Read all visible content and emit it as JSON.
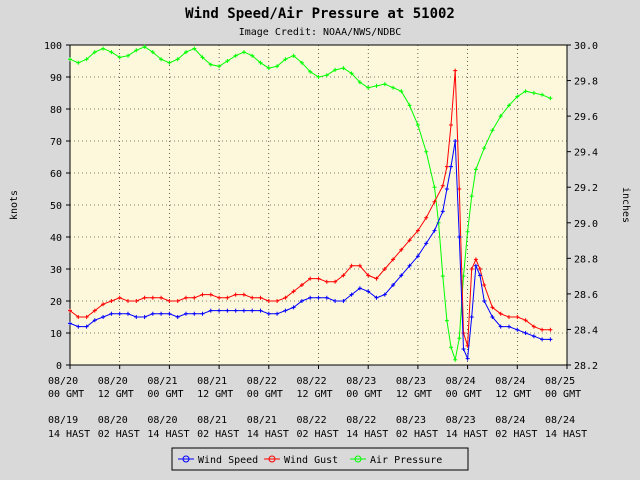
{
  "chart_data": {
    "type": "line",
    "title": "Wind Speed/Air Pressure at 51002",
    "subtitle": "Image Credit: NOAA/NWS/NDBC",
    "ylabel": "knots",
    "y2label": "inches",
    "ylim": [
      0,
      100
    ],
    "y2lim": [
      28.2,
      30.0
    ],
    "yticks": [
      "0",
      "10",
      "20",
      "30",
      "40",
      "50",
      "60",
      "70",
      "80",
      "90",
      "100"
    ],
    "y2ticks": [
      "28.2",
      "28.4",
      "28.6",
      "28.8",
      "29.0",
      "29.2",
      "29.4",
      "29.6",
      "29.8",
      "30.0"
    ],
    "xlim_hours": [
      0,
      120
    ],
    "x_ticks_gmt": [
      {
        "date": "08/20",
        "time": "00 GMT"
      },
      {
        "date": "08/20",
        "time": "12 GMT"
      },
      {
        "date": "08/21",
        "time": "00 GMT"
      },
      {
        "date": "08/21",
        "time": "12 GMT"
      },
      {
        "date": "08/22",
        "time": "00 GMT"
      },
      {
        "date": "08/22",
        "time": "12 GMT"
      },
      {
        "date": "08/23",
        "time": "00 GMT"
      },
      {
        "date": "08/23",
        "time": "12 GMT"
      },
      {
        "date": "08/24",
        "time": "00 GMT"
      },
      {
        "date": "08/24",
        "time": "12 GMT"
      },
      {
        "date": "08/25",
        "time": "00 GMT"
      }
    ],
    "x_ticks_hast": [
      {
        "date": "08/19",
        "time": "14 HAST"
      },
      {
        "date": "08/20",
        "time": "02 HAST"
      },
      {
        "date": "08/20",
        "time": "14 HAST"
      },
      {
        "date": "08/21",
        "time": "02 HAST"
      },
      {
        "date": "08/21",
        "time": "14 HAST"
      },
      {
        "date": "08/22",
        "time": "02 HAST"
      },
      {
        "date": "08/22",
        "time": "14 HAST"
      },
      {
        "date": "08/23",
        "time": "02 HAST"
      },
      {
        "date": "08/23",
        "time": "14 HAST"
      },
      {
        "date": "08/24",
        "time": "02 HAST"
      },
      {
        "date": "08/24",
        "time": "14 HAST"
      }
    ],
    "grid": true,
    "legend_position": "bottom",
    "series": [
      {
        "name": "Wind Speed",
        "axis": "left",
        "color": "#0000ff",
        "points": [
          [
            0,
            13
          ],
          [
            2,
            12
          ],
          [
            4,
            12
          ],
          [
            6,
            14
          ],
          [
            8,
            15
          ],
          [
            10,
            16
          ],
          [
            12,
            16
          ],
          [
            14,
            16
          ],
          [
            16,
            15
          ],
          [
            18,
            15
          ],
          [
            20,
            16
          ],
          [
            22,
            16
          ],
          [
            24,
            16
          ],
          [
            26,
            15
          ],
          [
            28,
            16
          ],
          [
            30,
            16
          ],
          [
            32,
            16
          ],
          [
            34,
            17
          ],
          [
            36,
            17
          ],
          [
            38,
            17
          ],
          [
            40,
            17
          ],
          [
            42,
            17
          ],
          [
            44,
            17
          ],
          [
            46,
            17
          ],
          [
            48,
            16
          ],
          [
            50,
            16
          ],
          [
            52,
            17
          ],
          [
            54,
            18
          ],
          [
            56,
            20
          ],
          [
            58,
            21
          ],
          [
            60,
            21
          ],
          [
            62,
            21
          ],
          [
            64,
            20
          ],
          [
            66,
            20
          ],
          [
            68,
            22
          ],
          [
            70,
            24
          ],
          [
            72,
            23
          ],
          [
            74,
            21
          ],
          [
            76,
            22
          ],
          [
            78,
            25
          ],
          [
            80,
            28
          ],
          [
            82,
            31
          ],
          [
            84,
            34
          ],
          [
            86,
            38
          ],
          [
            88,
            42
          ],
          [
            90,
            48
          ],
          [
            91,
            55
          ],
          [
            92,
            62
          ],
          [
            93,
            70
          ],
          [
            94,
            40
          ],
          [
            95,
            5
          ],
          [
            96,
            2
          ],
          [
            97,
            15
          ],
          [
            98,
            31
          ],
          [
            99,
            28
          ],
          [
            100,
            20
          ],
          [
            102,
            15
          ],
          [
            104,
            12
          ],
          [
            106,
            12
          ],
          [
            108,
            11
          ],
          [
            110,
            10
          ],
          [
            112,
            9
          ],
          [
            114,
            8
          ],
          [
            116,
            8
          ]
        ]
      },
      {
        "name": "Wind Gust",
        "axis": "left",
        "color": "#ff0000",
        "points": [
          [
            0,
            17
          ],
          [
            2,
            15
          ],
          [
            4,
            15
          ],
          [
            6,
            17
          ],
          [
            8,
            19
          ],
          [
            10,
            20
          ],
          [
            12,
            21
          ],
          [
            14,
            20
          ],
          [
            16,
            20
          ],
          [
            18,
            21
          ],
          [
            20,
            21
          ],
          [
            22,
            21
          ],
          [
            24,
            20
          ],
          [
            26,
            20
          ],
          [
            28,
            21
          ],
          [
            30,
            21
          ],
          [
            32,
            22
          ],
          [
            34,
            22
          ],
          [
            36,
            21
          ],
          [
            38,
            21
          ],
          [
            40,
            22
          ],
          [
            42,
            22
          ],
          [
            44,
            21
          ],
          [
            46,
            21
          ],
          [
            48,
            20
          ],
          [
            50,
            20
          ],
          [
            52,
            21
          ],
          [
            54,
            23
          ],
          [
            56,
            25
          ],
          [
            58,
            27
          ],
          [
            60,
            27
          ],
          [
            62,
            26
          ],
          [
            64,
            26
          ],
          [
            66,
            28
          ],
          [
            68,
            31
          ],
          [
            70,
            31
          ],
          [
            72,
            28
          ],
          [
            74,
            27
          ],
          [
            76,
            30
          ],
          [
            78,
            33
          ],
          [
            80,
            36
          ],
          [
            82,
            39
          ],
          [
            84,
            42
          ],
          [
            86,
            46
          ],
          [
            88,
            51
          ],
          [
            90,
            56
          ],
          [
            91,
            62
          ],
          [
            92,
            75
          ],
          [
            93,
            92
          ],
          [
            94,
            55
          ],
          [
            95,
            10
          ],
          [
            96,
            6
          ],
          [
            97,
            30
          ],
          [
            98,
            33
          ],
          [
            99,
            30
          ],
          [
            100,
            25
          ],
          [
            102,
            18
          ],
          [
            104,
            16
          ],
          [
            106,
            15
          ],
          [
            108,
            15
          ],
          [
            110,
            14
          ],
          [
            112,
            12
          ],
          [
            114,
            11
          ],
          [
            116,
            11
          ]
        ]
      },
      {
        "name": "Air Pressure",
        "axis": "right",
        "color": "#00ff00",
        "points": [
          [
            0,
            29.92
          ],
          [
            2,
            29.9
          ],
          [
            4,
            29.92
          ],
          [
            6,
            29.96
          ],
          [
            8,
            29.98
          ],
          [
            10,
            29.96
          ],
          [
            12,
            29.93
          ],
          [
            14,
            29.94
          ],
          [
            16,
            29.97
          ],
          [
            18,
            29.99
          ],
          [
            20,
            29.96
          ],
          [
            22,
            29.92
          ],
          [
            24,
            29.9
          ],
          [
            26,
            29.92
          ],
          [
            28,
            29.96
          ],
          [
            30,
            29.98
          ],
          [
            32,
            29.93
          ],
          [
            34,
            29.89
          ],
          [
            36,
            29.88
          ],
          [
            38,
            29.91
          ],
          [
            40,
            29.94
          ],
          [
            42,
            29.96
          ],
          [
            44,
            29.94
          ],
          [
            46,
            29.9
          ],
          [
            48,
            29.87
          ],
          [
            50,
            29.88
          ],
          [
            52,
            29.92
          ],
          [
            54,
            29.94
          ],
          [
            56,
            29.9
          ],
          [
            58,
            29.85
          ],
          [
            60,
            29.82
          ],
          [
            62,
            29.83
          ],
          [
            64,
            29.86
          ],
          [
            66,
            29.87
          ],
          [
            68,
            29.84
          ],
          [
            70,
            29.79
          ],
          [
            72,
            29.76
          ],
          [
            74,
            29.77
          ],
          [
            76,
            29.78
          ],
          [
            78,
            29.76
          ],
          [
            80,
            29.74
          ],
          [
            82,
            29.66
          ],
          [
            84,
            29.55
          ],
          [
            86,
            29.4
          ],
          [
            88,
            29.2
          ],
          [
            89,
            29.0
          ],
          [
            90,
            28.7
          ],
          [
            91,
            28.45
          ],
          [
            92,
            28.3
          ],
          [
            93,
            28.23
          ],
          [
            94,
            28.35
          ],
          [
            95,
            28.7
          ],
          [
            96,
            28.95
          ],
          [
            97,
            29.15
          ],
          [
            98,
            29.3
          ],
          [
            100,
            29.42
          ],
          [
            102,
            29.52
          ],
          [
            104,
            29.6
          ],
          [
            106,
            29.66
          ],
          [
            108,
            29.71
          ],
          [
            110,
            29.74
          ],
          [
            112,
            29.73
          ],
          [
            114,
            29.72
          ],
          [
            116,
            29.7
          ]
        ]
      }
    ]
  }
}
